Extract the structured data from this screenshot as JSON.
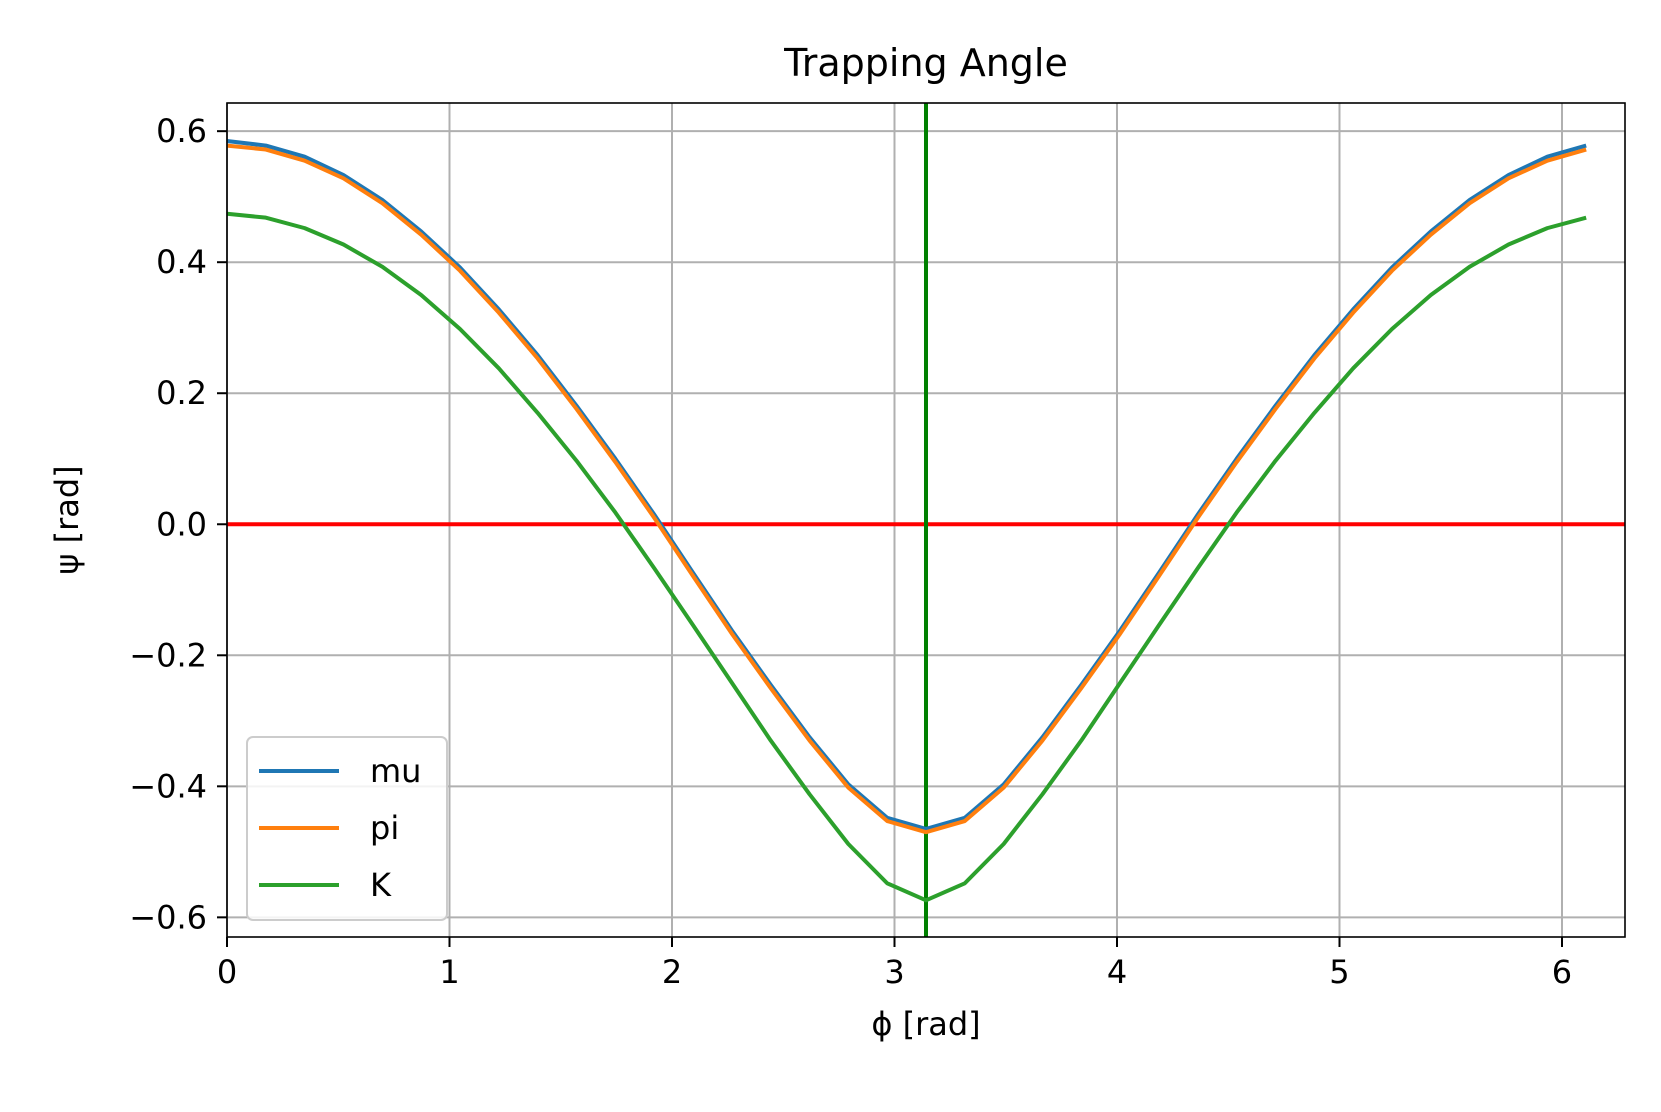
{
  "chart_data": {
    "type": "line",
    "title": "Trapping Angle",
    "xlabel": "ϕ [rad]",
    "ylabel": "ψ [rad]",
    "xlim": [
      0,
      6.2832
    ],
    "ylim": [
      -0.63,
      0.643
    ],
    "grid": true,
    "legend_position": "lower-left",
    "x_ticks": [
      0,
      1,
      2,
      3,
      4,
      5,
      6
    ],
    "x_tick_labels": [
      "0",
      "1",
      "2",
      "3",
      "4",
      "5",
      "6"
    ],
    "y_ticks": [
      0.6,
      0.4,
      0.2,
      0.0,
      -0.2,
      -0.4,
      -0.6
    ],
    "y_tick_labels": [
      "0.6",
      "0.4",
      "0.2",
      "0.0",
      "−0.2",
      "−0.4",
      "−0.6"
    ],
    "x": [
      0,
      0.1745,
      0.349,
      0.5236,
      0.6981,
      0.8727,
      1.0472,
      1.2217,
      1.3963,
      1.5708,
      1.7453,
      1.9199,
      2.0944,
      2.2689,
      2.4435,
      2.618,
      2.7925,
      2.9671,
      3.1416,
      3.3161,
      3.4907,
      3.6652,
      3.8397,
      4.0143,
      4.1888,
      4.3633,
      4.5379,
      4.7124,
      4.8869,
      5.0615,
      5.236,
      5.4105,
      5.5851,
      5.7596,
      5.9341,
      6.1087
    ],
    "series": [
      {
        "name": "mu",
        "color": "#1f77b4",
        "values": [
          0.585,
          0.578,
          0.561,
          0.533,
          0.495,
          0.447,
          0.392,
          0.328,
          0.258,
          0.181,
          0.1,
          0.015,
          -0.074,
          -0.162,
          -0.245,
          -0.325,
          -0.397,
          -0.448,
          -0.465,
          -0.448,
          -0.397,
          -0.325,
          -0.245,
          -0.162,
          -0.074,
          0.015,
          0.1,
          0.181,
          0.258,
          0.328,
          0.392,
          0.447,
          0.495,
          0.533,
          0.561,
          0.578
        ]
      },
      {
        "name": "pi",
        "color": "#ff7f0e",
        "values": [
          0.578,
          0.572,
          0.555,
          0.528,
          0.49,
          0.442,
          0.387,
          0.323,
          0.253,
          0.176,
          0.095,
          0.01,
          -0.079,
          -0.167,
          -0.25,
          -0.33,
          -0.402,
          -0.453,
          -0.47,
          -0.453,
          -0.402,
          -0.33,
          -0.25,
          -0.167,
          -0.079,
          0.01,
          0.095,
          0.176,
          0.253,
          0.323,
          0.387,
          0.442,
          0.49,
          0.528,
          0.555,
          0.572
        ]
      },
      {
        "name": "K",
        "color": "#2ca02c",
        "values": [
          0.474,
          0.468,
          0.452,
          0.427,
          0.393,
          0.35,
          0.298,
          0.238,
          0.17,
          0.097,
          0.018,
          -0.067,
          -0.154,
          -0.242,
          -0.33,
          -0.412,
          -0.488,
          -0.548,
          -0.574,
          -0.548,
          -0.488,
          -0.412,
          -0.33,
          -0.242,
          -0.154,
          -0.067,
          0.018,
          0.097,
          0.17,
          0.238,
          0.298,
          0.35,
          0.393,
          0.427,
          0.452,
          0.468
        ]
      }
    ],
    "reference_lines": [
      {
        "orientation": "horizontal",
        "value": 0.0,
        "color": "#ff0000"
      },
      {
        "orientation": "vertical",
        "value": 3.1416,
        "color": "#008000"
      }
    ]
  }
}
